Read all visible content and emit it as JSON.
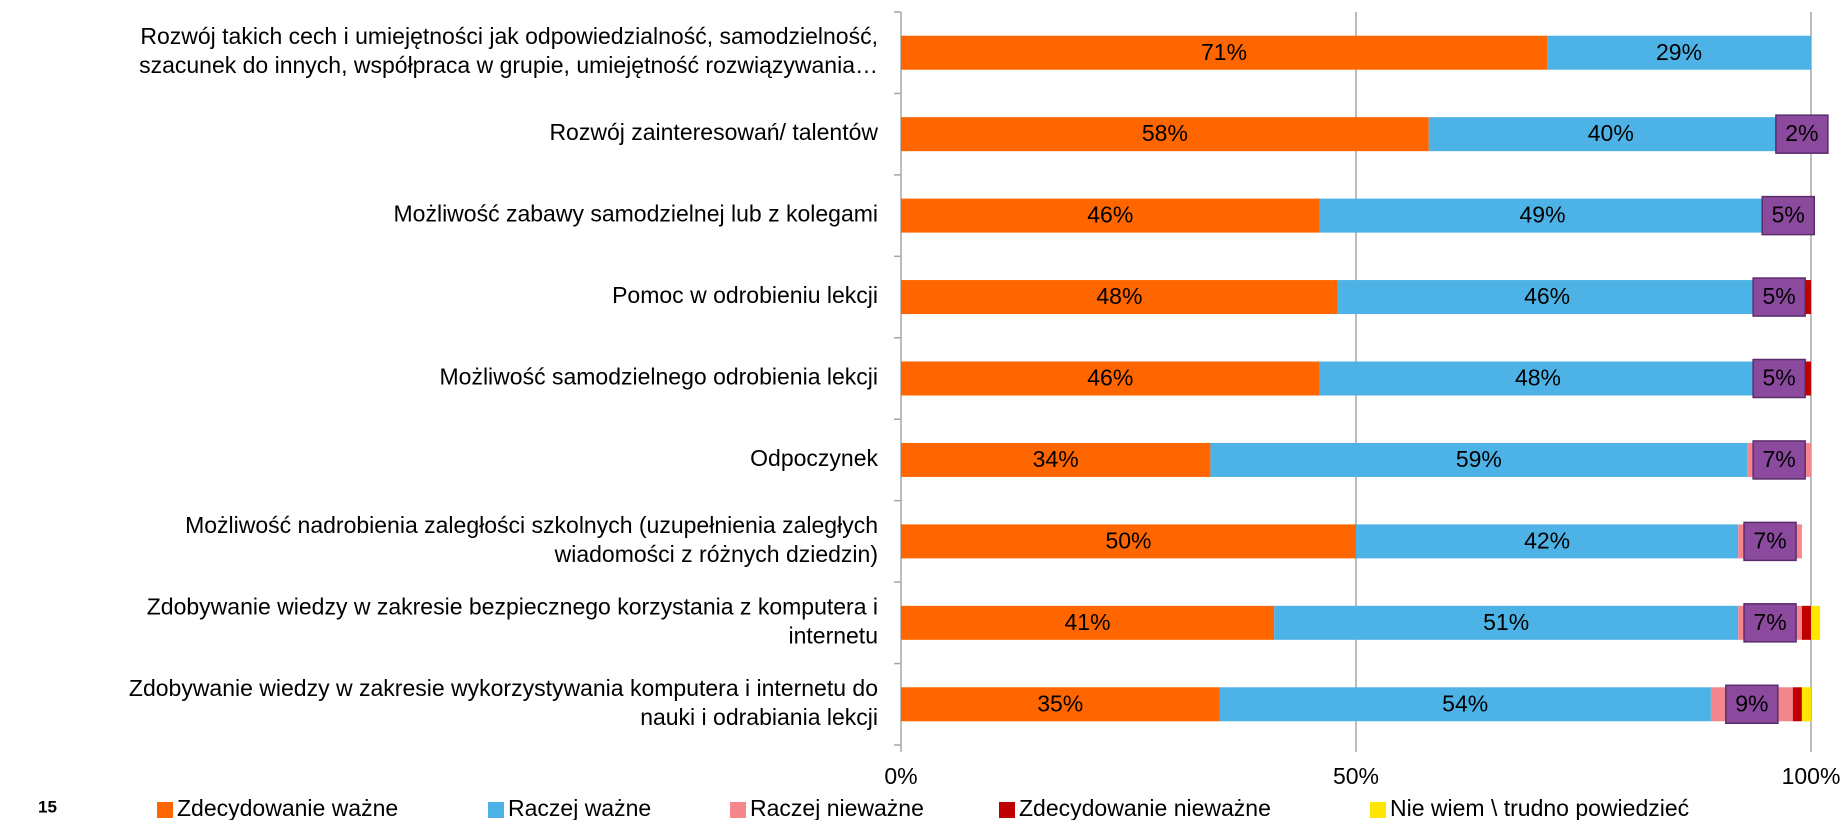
{
  "page_number": "15",
  "chart_data": {
    "type": "stacked-bar-horizontal",
    "categories": [
      "Rozwój takich cech i umiejętności jak odpowiedzialność, samodzielność,\nszacunek do innych, współpraca w grupie, umiejętność rozwiązywania…",
      "Rozwój zainteresowań/ talentów",
      "Możliwość zabawy samodzielnej lub z kolegami",
      "Pomoc w odrobieniu lekcji",
      "Możliwość samodzielnego odrobienia lekcji",
      "Odpoczynek",
      "Możliwość nadrobienia zaległości szkolnych (uzupełnienia zaległych\nwiadomości z różnych dziedzin)",
      "Zdobywanie wiedzy w zakresie bezpiecznego korzystania z komputera i\ninternetu",
      "Zdobywanie wiedzy w zakresie wykorzystywania komputera i internetu do\nnauki i odrabiania lekcji"
    ],
    "series": [
      {
        "name": "Zdecydowanie ważne",
        "color": "#ff6600",
        "values": [
          71,
          58,
          46,
          48,
          46,
          34,
          50,
          41,
          35
        ],
        "value_labels": [
          "71%",
          "58%",
          "46%",
          "48%",
          "46%",
          "34%",
          "50%",
          "41%",
          "35%"
        ]
      },
      {
        "name": "Raczej ważne",
        "color": "#4db3e6",
        "values": [
          29,
          40,
          49,
          46,
          48,
          59,
          42,
          51,
          54
        ],
        "value_labels": [
          "29%",
          "40%",
          "49%",
          "46%",
          "48%",
          "59%",
          "42%",
          "51%",
          "54%"
        ]
      },
      {
        "name": "Raczej nieważne",
        "color": "#f4878b",
        "label_box_color": "#8b4a9e",
        "values": [
          0,
          2,
          5,
          5,
          5,
          7,
          7,
          7,
          9
        ],
        "value_labels": [
          null,
          "2%",
          "5%",
          "5%",
          "5%",
          "7%",
          "7%",
          "7%",
          "9%"
        ]
      },
      {
        "name": "Zdecydowanie nieważne",
        "color": "#c00000",
        "values": [
          0,
          0,
          0,
          1,
          1,
          0,
          0,
          1,
          1
        ]
      },
      {
        "name": "Nie wiem \\ trudno powiedzieć",
        "color": "#ffe600",
        "values": [
          0,
          0,
          0,
          0,
          0,
          0,
          0,
          1,
          1
        ]
      }
    ],
    "xlim": [
      0,
      100
    ],
    "xticks": [
      {
        "value": 0,
        "label": "0%"
      },
      {
        "value": 50,
        "label": "50%"
      },
      {
        "value": 100,
        "label": "100%"
      }
    ],
    "grid": true,
    "legend": "bottom"
  }
}
